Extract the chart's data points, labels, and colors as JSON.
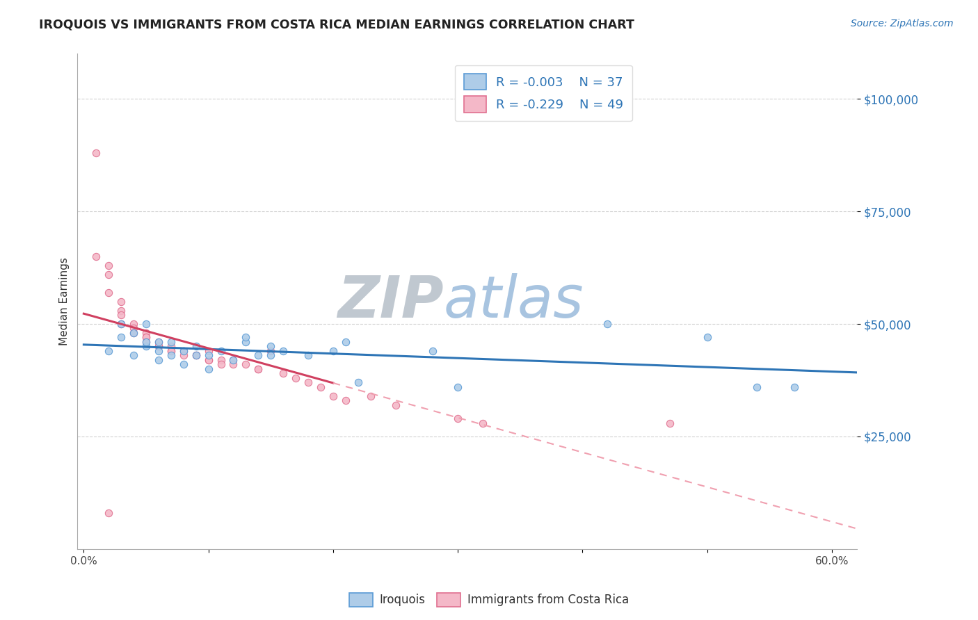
{
  "title": "IROQUOIS VS IMMIGRANTS FROM COSTA RICA MEDIAN EARNINGS CORRELATION CHART",
  "source_text": "Source: ZipAtlas.com",
  "ylabel": "Median Earnings",
  "xlim": [
    -0.005,
    0.62
  ],
  "ylim": [
    0,
    110000
  ],
  "yticks": [
    25000,
    50000,
    75000,
    100000
  ],
  "ytick_labels": [
    "$25,000",
    "$50,000",
    "$75,000",
    "$100,000"
  ],
  "xtick_positions": [
    0.0,
    0.1,
    0.2,
    0.3,
    0.4,
    0.5,
    0.6
  ],
  "xtick_labels": [
    "0.0%",
    "",
    "",
    "",
    "",
    "",
    "60.0%"
  ],
  "background_color": "#ffffff",
  "grid_color": "#cccccc",
  "iroquois_color": "#aecce8",
  "iroquois_edge_color": "#5b9bd5",
  "costa_rica_color": "#f4b8c8",
  "costa_rica_edge_color": "#e07090",
  "iroquois_R": -0.003,
  "iroquois_N": 37,
  "costa_rica_R": -0.229,
  "costa_rica_N": 49,
  "legend_r_color": "#2e75b6",
  "trend_blue_color": "#2e75b6",
  "trend_pink_solid_color": "#d04060",
  "trend_pink_dash_color": "#f0a0b0",
  "iroquois_x": [
    0.02,
    0.03,
    0.03,
    0.04,
    0.04,
    0.05,
    0.05,
    0.05,
    0.06,
    0.06,
    0.06,
    0.07,
    0.07,
    0.08,
    0.08,
    0.09,
    0.09,
    0.1,
    0.1,
    0.11,
    0.12,
    0.13,
    0.13,
    0.14,
    0.15,
    0.15,
    0.16,
    0.18,
    0.2,
    0.21,
    0.22,
    0.28,
    0.3,
    0.42,
    0.5,
    0.54,
    0.57
  ],
  "iroquois_y": [
    44000,
    47000,
    50000,
    43000,
    48000,
    45000,
    46000,
    50000,
    42000,
    44000,
    46000,
    43000,
    46000,
    41000,
    44000,
    43000,
    45000,
    40000,
    43000,
    44000,
    42000,
    46000,
    47000,
    43000,
    43000,
    45000,
    44000,
    43000,
    44000,
    46000,
    37000,
    44000,
    36000,
    50000,
    47000,
    36000,
    36000
  ],
  "costa_rica_x": [
    0.01,
    0.01,
    0.02,
    0.02,
    0.02,
    0.03,
    0.03,
    0.03,
    0.03,
    0.04,
    0.04,
    0.04,
    0.05,
    0.05,
    0.05,
    0.05,
    0.06,
    0.06,
    0.06,
    0.07,
    0.07,
    0.07,
    0.08,
    0.08,
    0.09,
    0.09,
    0.1,
    0.1,
    0.1,
    0.11,
    0.11,
    0.12,
    0.12,
    0.13,
    0.14,
    0.14,
    0.15,
    0.16,
    0.17,
    0.18,
    0.19,
    0.2,
    0.21,
    0.23,
    0.25,
    0.3,
    0.32,
    0.47,
    0.02
  ],
  "costa_rica_y": [
    88000,
    65000,
    63000,
    61000,
    57000,
    55000,
    53000,
    52000,
    50000,
    50000,
    49000,
    48000,
    48000,
    47000,
    47000,
    46000,
    46000,
    45000,
    45000,
    45000,
    44000,
    44000,
    44000,
    43000,
    43000,
    43000,
    44000,
    42000,
    42000,
    42000,
    41000,
    42000,
    41000,
    41000,
    40000,
    40000,
    44000,
    39000,
    38000,
    37000,
    36000,
    34000,
    33000,
    34000,
    32000,
    29000,
    28000,
    28000,
    8000
  ],
  "watermark_zip_color": "#c0c8d0",
  "watermark_atlas_color": "#a8c4e0",
  "marker_size": 55
}
